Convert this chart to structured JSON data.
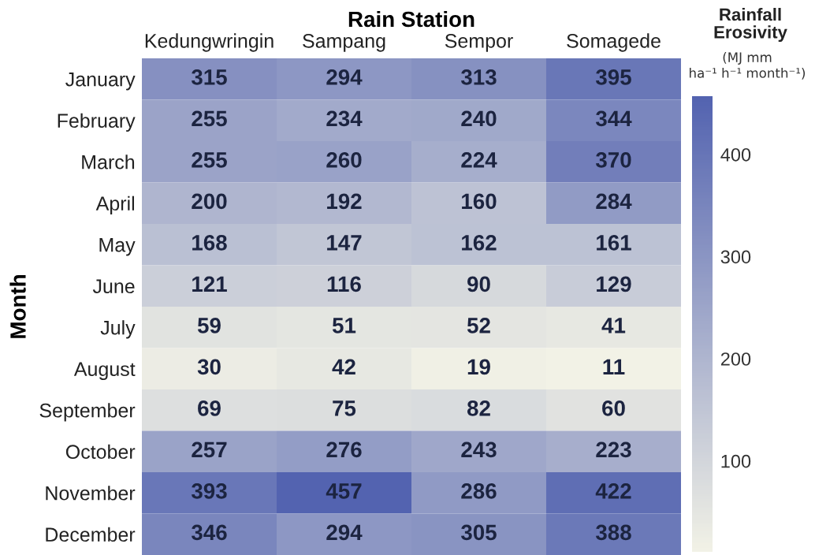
{
  "chart_data": {
    "type": "heatmap",
    "xlabel": "Rain Station",
    "ylabel": "Month",
    "clabel": "Rainfall Erosivity",
    "annotations": [
      "(MJ mm ha⁻¹ h⁻¹ month⁻¹)"
    ],
    "categories": [
      "Kedungwringin",
      "Sampang",
      "Sempor",
      "Somagede"
    ],
    "y_categories": [
      "January",
      "February",
      "March",
      "April",
      "May",
      "June",
      "July",
      "August",
      "September",
      "October",
      "November",
      "December"
    ],
    "cells": [
      [
        315,
        294,
        313,
        395
      ],
      [
        255,
        234,
        240,
        344
      ],
      [
        255,
        260,
        224,
        370
      ],
      [
        200,
        192,
        160,
        284
      ],
      [
        168,
        147,
        162,
        161
      ],
      [
        121,
        116,
        90,
        129
      ],
      [
        59,
        51,
        52,
        41
      ],
      [
        30,
        42,
        19,
        11
      ],
      [
        69,
        75,
        82,
        60
      ],
      [
        257,
        276,
        243,
        223
      ],
      [
        393,
        457,
        286,
        422
      ],
      [
        346,
        294,
        305,
        388
      ]
    ],
    "clim": [
      11,
      457
    ],
    "cticks": [
      100,
      200,
      300,
      400
    ],
    "colors": [
      "#f2f2e6",
      "#5363b0"
    ],
    "data_labels": true,
    "grid": false
  }
}
